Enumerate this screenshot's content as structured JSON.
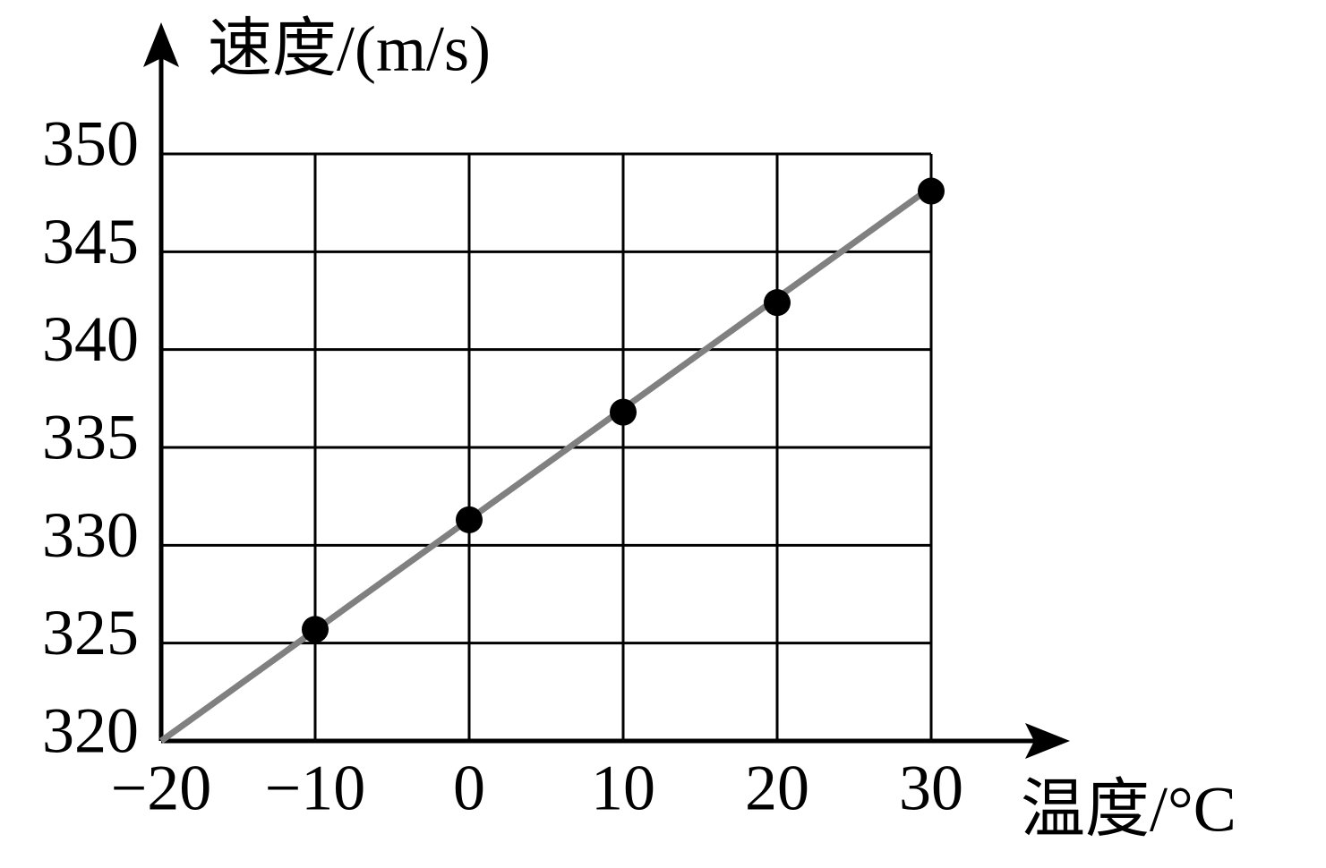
{
  "chart_data": {
    "type": "scatter",
    "x_label": "温度/°C",
    "y_label": "速度/(m/s)",
    "xlim": [
      -20,
      30
    ],
    "ylim": [
      320,
      350
    ],
    "xticks": [
      {
        "value": -20,
        "label": "−20"
      },
      {
        "value": -10,
        "label": "−10"
      },
      0,
      10,
      20,
      30
    ],
    "yticks": [
      320,
      325,
      330,
      335,
      340,
      345,
      350
    ],
    "grid": true,
    "series": [
      {
        "type": "scatter",
        "color": "#000000",
        "x": [
          -10,
          0,
          10,
          20,
          30
        ],
        "values": [
          325.7,
          331.3,
          336.8,
          342.4,
          348.1
        ]
      },
      {
        "type": "line",
        "color": "#808080",
        "x": [
          -20,
          30
        ],
        "values": [
          320,
          348.3
        ]
      }
    ]
  }
}
